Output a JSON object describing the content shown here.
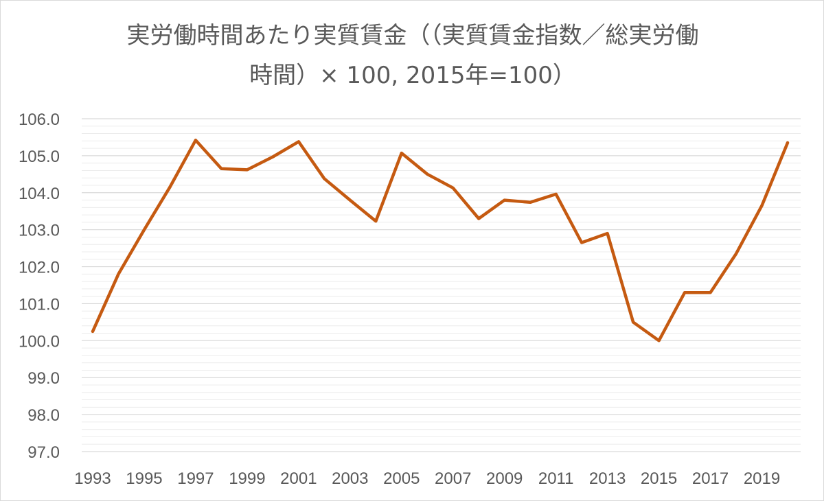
{
  "chart_data": {
    "type": "line",
    "title": "実労働時間あたり実質賃金（（実質賃金指数／総実労働\n時間）× 100, 2015年=100）",
    "xlabel": "",
    "ylabel": "",
    "ylim": [
      97.0,
      106.0
    ],
    "yticks": [
      "106.0",
      "105.0",
      "104.0",
      "103.0",
      "102.0",
      "101.0",
      "100.0",
      "99.0",
      "98.0",
      "97.0"
    ],
    "xtick_labels": [
      "1993",
      "1995",
      "1997",
      "1999",
      "2001",
      "2003",
      "2005",
      "2007",
      "2009",
      "2011",
      "2013",
      "2015",
      "2017",
      "2019"
    ],
    "grid": true,
    "legend": "none",
    "x": [
      1993,
      1994,
      1995,
      1996,
      1997,
      1998,
      1999,
      2000,
      2001,
      2002,
      2003,
      2004,
      2005,
      2006,
      2007,
      2008,
      2009,
      2010,
      2011,
      2012,
      2013,
      2014,
      2015,
      2016,
      2017,
      2018,
      2019,
      2020
    ],
    "series": [
      {
        "color": "#c55a11",
        "values": [
          100.25,
          101.8,
          103.0,
          104.15,
          105.42,
          104.65,
          104.62,
          104.97,
          105.38,
          104.38,
          103.8,
          103.23,
          105.07,
          104.5,
          104.13,
          103.3,
          103.8,
          103.74,
          103.96,
          102.65,
          102.9,
          100.5,
          100.0,
          101.3,
          101.3,
          102.35,
          103.65,
          105.35
        ]
      }
    ]
  }
}
